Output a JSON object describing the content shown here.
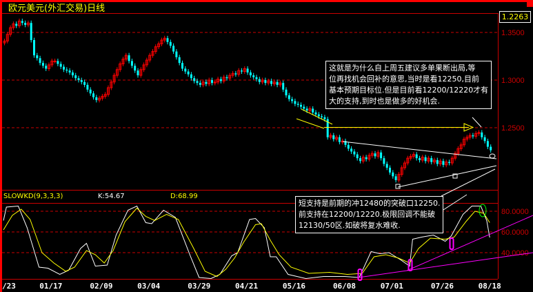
{
  "title": "欧元美元(外汇交易)日线",
  "last_price": "1.2263",
  "indicator": {
    "name": "SLOWKD(9,3,3,3)",
    "k_label": "K:54.67",
    "d_label": "D:68.99"
  },
  "notes": [
    {
      "lines": [
        "这就是为什么自上周五建议多单果断出局,等",
        "位再找机会回补的意思,当时是看12250,目前",
        "基本预期目标位.但是目前看12200/12220才有",
        "大的支持,到时也是做多的好机会."
      ]
    },
    {
      "lines": [
        "短支持是前期的冲12480的突破口12250.",
        "前支持在12200/12220.极限回调不能破",
        "12130/50区.如破将复水难收."
      ]
    }
  ],
  "chart_data": [
    {
      "type": "candlestick",
      "title": "欧元美元(外汇交易)日线",
      "ylim": [
        1.19,
        1.365
      ],
      "price_ticks": [
        "1.3500",
        "1.3000",
        "1.2500"
      ],
      "price_tick_values": [
        1.35,
        1.3,
        1.25
      ],
      "grid": true,
      "x_ticks": [
        "/23",
        "01/17",
        "02/09",
        "03/04",
        "03/29",
        "04/21",
        "05/16",
        "06/08",
        "07/01",
        "07/26",
        "08/18"
      ],
      "x_tick_bars": [
        0,
        16,
        33,
        49,
        66,
        82,
        98,
        115,
        131,
        148,
        164
      ],
      "up_color": "#ff0000",
      "down_color": "#00ffff",
      "closes": [
        1.341,
        1.348,
        1.355,
        1.359,
        1.357,
        1.362,
        1.36,
        1.358,
        1.36,
        1.342,
        1.326,
        1.323,
        1.318,
        1.315,
        1.312,
        1.316,
        1.32,
        1.32,
        1.317,
        1.314,
        1.311,
        1.31,
        1.308,
        1.305,
        1.302,
        1.3,
        1.298,
        1.295,
        1.29,
        1.286,
        1.282,
        1.279,
        1.281,
        1.283,
        1.285,
        1.292,
        1.298,
        1.305,
        1.311,
        1.317,
        1.322,
        1.326,
        1.32,
        1.315,
        1.31,
        1.305,
        1.311,
        1.316,
        1.321,
        1.326,
        1.33,
        1.335,
        1.338,
        1.342,
        1.344,
        1.34,
        1.336,
        1.33,
        1.324,
        1.318,
        1.312,
        1.309,
        1.306,
        1.302,
        1.299,
        1.297,
        1.295,
        1.298,
        1.296,
        1.3,
        1.297,
        1.298,
        1.301,
        1.299,
        1.303,
        1.302,
        1.305,
        1.307,
        1.306,
        1.31,
        1.309,
        1.312,
        1.308,
        1.305,
        1.303,
        1.301,
        1.298,
        1.3,
        1.297,
        1.299,
        1.296,
        1.298,
        1.295,
        1.297,
        1.29,
        1.284,
        1.28,
        1.278,
        1.275,
        1.274,
        1.272,
        1.27,
        1.268,
        1.27,
        1.266,
        1.264,
        1.262,
        1.261,
        1.259,
        1.24,
        1.242,
        1.238,
        1.24,
        1.235,
        1.236,
        1.232,
        1.228,
        1.225,
        1.222,
        1.218,
        1.215,
        1.219,
        1.217,
        1.221,
        1.223,
        1.22,
        1.224,
        1.218,
        1.212,
        1.208,
        1.203,
        1.199,
        1.195,
        1.201,
        1.208,
        1.213,
        1.218,
        1.22,
        1.222,
        1.218,
        1.216,
        1.219,
        1.215,
        1.218,
        1.214,
        1.216,
        1.212,
        1.215,
        1.211,
        1.214,
        1.213,
        1.218,
        1.223,
        1.228,
        1.232,
        1.238,
        1.24,
        1.242,
        1.241,
        1.244,
        1.245,
        1.24,
        1.236,
        1.23,
        1.2263
      ]
    },
    {
      "type": "line",
      "title": "SLOWKD(9,3,3,3)",
      "ylim": [
        13,
        90
      ],
      "y_ticks": [
        "80.0000",
        "60.0000",
        "40.0000"
      ],
      "y_tick_values": [
        80,
        60,
        40
      ],
      "grid": true,
      "series": [
        {
          "name": "K",
          "color": "#ffffff",
          "points": [
            [
              0,
              71
            ],
            [
              1,
              84
            ],
            [
              5,
              85
            ],
            [
              8,
              64
            ],
            [
              12,
              26
            ],
            [
              15,
              25
            ],
            [
              19,
              19
            ],
            [
              22,
              23
            ],
            [
              26,
              44
            ],
            [
              28,
              49
            ],
            [
              31,
              27
            ],
            [
              35,
              28
            ],
            [
              38,
              57
            ],
            [
              42,
              81
            ],
            [
              45,
              85
            ],
            [
              48,
              69
            ],
            [
              50,
              68
            ],
            [
              54,
              81
            ],
            [
              58,
              74
            ],
            [
              63,
              37
            ],
            [
              66,
              16
            ],
            [
              70,
              15
            ],
            [
              73,
              19
            ],
            [
              77,
              37
            ],
            [
              79,
              40
            ],
            [
              83,
              72
            ],
            [
              85,
              73
            ],
            [
              88,
              64
            ],
            [
              90,
              36
            ],
            [
              92,
              36
            ],
            [
              96,
              19
            ],
            [
              102,
              15
            ],
            [
              108,
              17
            ],
            [
              115,
              17
            ],
            [
              120,
              16
            ],
            [
              124,
              41
            ],
            [
              127,
              39
            ],
            [
              130,
              40
            ],
            [
              134,
              33
            ],
            [
              137,
              27
            ],
            [
              138,
              53
            ],
            [
              141,
              55
            ],
            [
              145,
              57
            ],
            [
              149,
              51
            ],
            [
              151,
              56
            ],
            [
              155,
              77
            ],
            [
              158,
              85
            ],
            [
              161,
              85
            ],
            [
              163,
              71
            ],
            [
              164,
              54.67
            ]
          ]
        },
        {
          "name": "D",
          "color": "#ffff00",
          "points": [
            [
              0,
              62
            ],
            [
              3,
              76
            ],
            [
              6,
              82
            ],
            [
              9,
              72
            ],
            [
              13,
              40
            ],
            [
              17,
              30
            ],
            [
              21,
              22
            ],
            [
              24,
              26
            ],
            [
              28,
              42
            ],
            [
              31,
              38
            ],
            [
              34,
              30
            ],
            [
              37,
              42
            ],
            [
              41,
              70
            ],
            [
              45,
              83
            ],
            [
              48,
              75
            ],
            [
              51,
              71
            ],
            [
              55,
              77
            ],
            [
              59,
              72
            ],
            [
              64,
              45
            ],
            [
              68,
              22
            ],
            [
              72,
              17
            ],
            [
              75,
              24
            ],
            [
              78,
              35
            ],
            [
              81,
              50
            ],
            [
              85,
              67
            ],
            [
              87,
              68
            ],
            [
              90,
              52
            ],
            [
              93,
              38
            ],
            [
              97,
              26
            ],
            [
              103,
              20
            ],
            [
              110,
              21
            ],
            [
              116,
              19
            ],
            [
              121,
              20
            ],
            [
              125,
              36
            ],
            [
              129,
              38
            ],
            [
              133,
              35
            ],
            [
              137,
              30
            ],
            [
              140,
              44
            ],
            [
              144,
              54
            ],
            [
              149,
              53
            ],
            [
              152,
              55
            ],
            [
              156,
              70
            ],
            [
              159,
              80
            ],
            [
              162,
              78
            ],
            [
              164,
              68.99
            ]
          ]
        }
      ]
    }
  ]
}
